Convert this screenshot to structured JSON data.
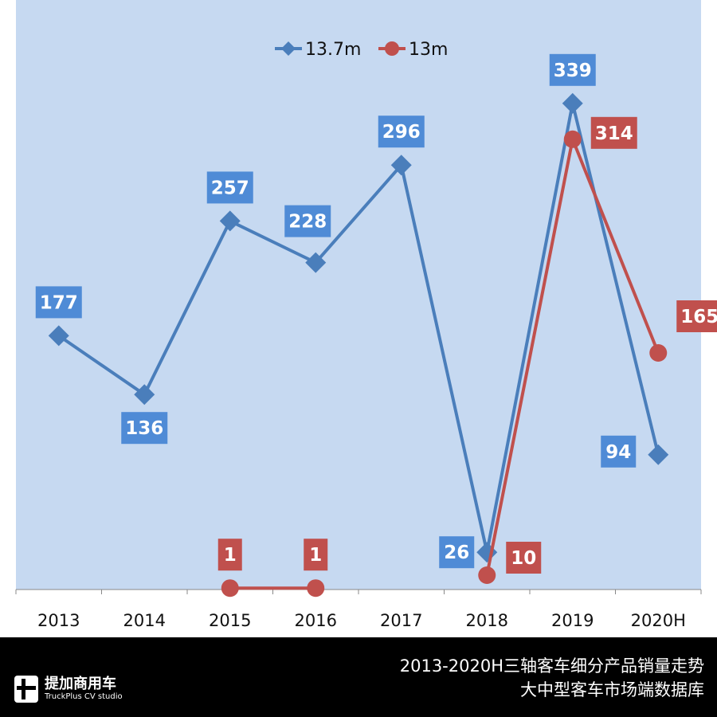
{
  "chart_data": {
    "type": "line",
    "categories": [
      "2013",
      "2014",
      "2015",
      "2016",
      "2017",
      "2018",
      "2019",
      "2020H"
    ],
    "series": [
      {
        "name": "13.7m",
        "color": "#4a7ebb",
        "label_color": "#4f8bd6",
        "marker": "diamond",
        "values": [
          177,
          136,
          257,
          228,
          296,
          26,
          339,
          94
        ]
      },
      {
        "name": "13m",
        "color": "#c0504d",
        "label_color": "#c0504d",
        "marker": "circle",
        "values": [
          null,
          null,
          1,
          1,
          null,
          10,
          314,
          165
        ]
      }
    ],
    "ylim": [
      0,
      340
    ],
    "legend": "top-center",
    "grid": false,
    "plot_background": "#c6d9f1"
  },
  "footer": {
    "title": "2013-2020H三轴客车细分产品销量走势",
    "subtitle": "大中型客车市场端数据库",
    "logo_cn": "提加商用车",
    "logo_en": "TruckPlus CV studio"
  }
}
